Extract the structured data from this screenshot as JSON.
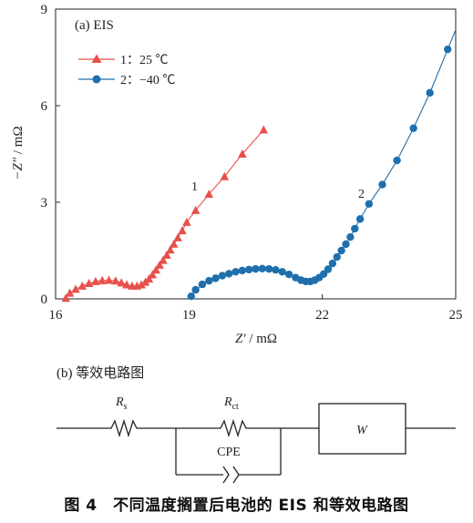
{
  "chart_data": {
    "type": "scatter",
    "panel_label": "(a) EIS",
    "xlabel_var": "Z′",
    "xlabel_unit": " / mΩ",
    "ylabel_var": "−Z″",
    "ylabel_unit": " / mΩ",
    "xlim": [
      16,
      25
    ],
    "ylim": [
      0,
      9
    ],
    "xticks": [
      16,
      19,
      22,
      25
    ],
    "yticks": [
      0,
      3,
      6,
      9
    ],
    "legend_position": "top-left",
    "series": [
      {
        "name": "1：25 ℃",
        "annotation": "1",
        "marker": "triangle",
        "color": "#e8514b",
        "points": [
          [
            16.23,
            0.02
          ],
          [
            16.32,
            0.18
          ],
          [
            16.45,
            0.3
          ],
          [
            16.6,
            0.4
          ],
          [
            16.75,
            0.48
          ],
          [
            16.9,
            0.54
          ],
          [
            17.05,
            0.57
          ],
          [
            17.2,
            0.58
          ],
          [
            17.35,
            0.56
          ],
          [
            17.48,
            0.5
          ],
          [
            17.6,
            0.44
          ],
          [
            17.72,
            0.4
          ],
          [
            17.83,
            0.4
          ],
          [
            17.93,
            0.44
          ],
          [
            18.02,
            0.52
          ],
          [
            18.1,
            0.62
          ],
          [
            18.18,
            0.75
          ],
          [
            18.26,
            0.9
          ],
          [
            18.34,
            1.05
          ],
          [
            18.42,
            1.2
          ],
          [
            18.5,
            1.36
          ],
          [
            18.58,
            1.52
          ],
          [
            18.66,
            1.7
          ],
          [
            18.75,
            1.9
          ],
          [
            18.85,
            2.12
          ],
          [
            18.95,
            2.38
          ],
          [
            19.15,
            2.75
          ],
          [
            19.45,
            3.25
          ],
          [
            19.8,
            3.8
          ],
          [
            20.2,
            4.5
          ],
          [
            20.68,
            5.25
          ]
        ]
      },
      {
        "name": "2：−40 ℃",
        "annotation": "2",
        "marker": "circle",
        "color": "#1f6fad",
        "points": [
          [
            19.05,
            0.08
          ],
          [
            19.15,
            0.28
          ],
          [
            19.3,
            0.45
          ],
          [
            19.45,
            0.56
          ],
          [
            19.6,
            0.64
          ],
          [
            19.75,
            0.72
          ],
          [
            19.9,
            0.78
          ],
          [
            20.05,
            0.84
          ],
          [
            20.2,
            0.88
          ],
          [
            20.35,
            0.91
          ],
          [
            20.5,
            0.93
          ],
          [
            20.65,
            0.94
          ],
          [
            20.8,
            0.93
          ],
          [
            20.95,
            0.9
          ],
          [
            21.1,
            0.84
          ],
          [
            21.25,
            0.76
          ],
          [
            21.4,
            0.66
          ],
          [
            21.52,
            0.58
          ],
          [
            21.63,
            0.54
          ],
          [
            21.73,
            0.54
          ],
          [
            21.83,
            0.58
          ],
          [
            21.93,
            0.66
          ],
          [
            22.03,
            0.77
          ],
          [
            22.13,
            0.92
          ],
          [
            22.23,
            1.1
          ],
          [
            22.33,
            1.3
          ],
          [
            22.43,
            1.5
          ],
          [
            22.53,
            1.7
          ],
          [
            22.63,
            1.92
          ],
          [
            22.73,
            2.18
          ],
          [
            22.85,
            2.48
          ],
          [
            23.05,
            2.95
          ],
          [
            23.35,
            3.55
          ],
          [
            23.68,
            4.3
          ],
          [
            24.05,
            5.3
          ],
          [
            24.42,
            6.4
          ],
          [
            24.82,
            7.75
          ]
        ]
      }
    ]
  },
  "circuit": {
    "label": "(b) 等效电路图",
    "rs_main": "R",
    "rs_sub": "s",
    "rct_main": "R",
    "rct_sub": "ct",
    "cpe": "CPE",
    "w": "W"
  },
  "caption": "图 4　不同温度搁置后电池的 EIS 和等效电路图"
}
